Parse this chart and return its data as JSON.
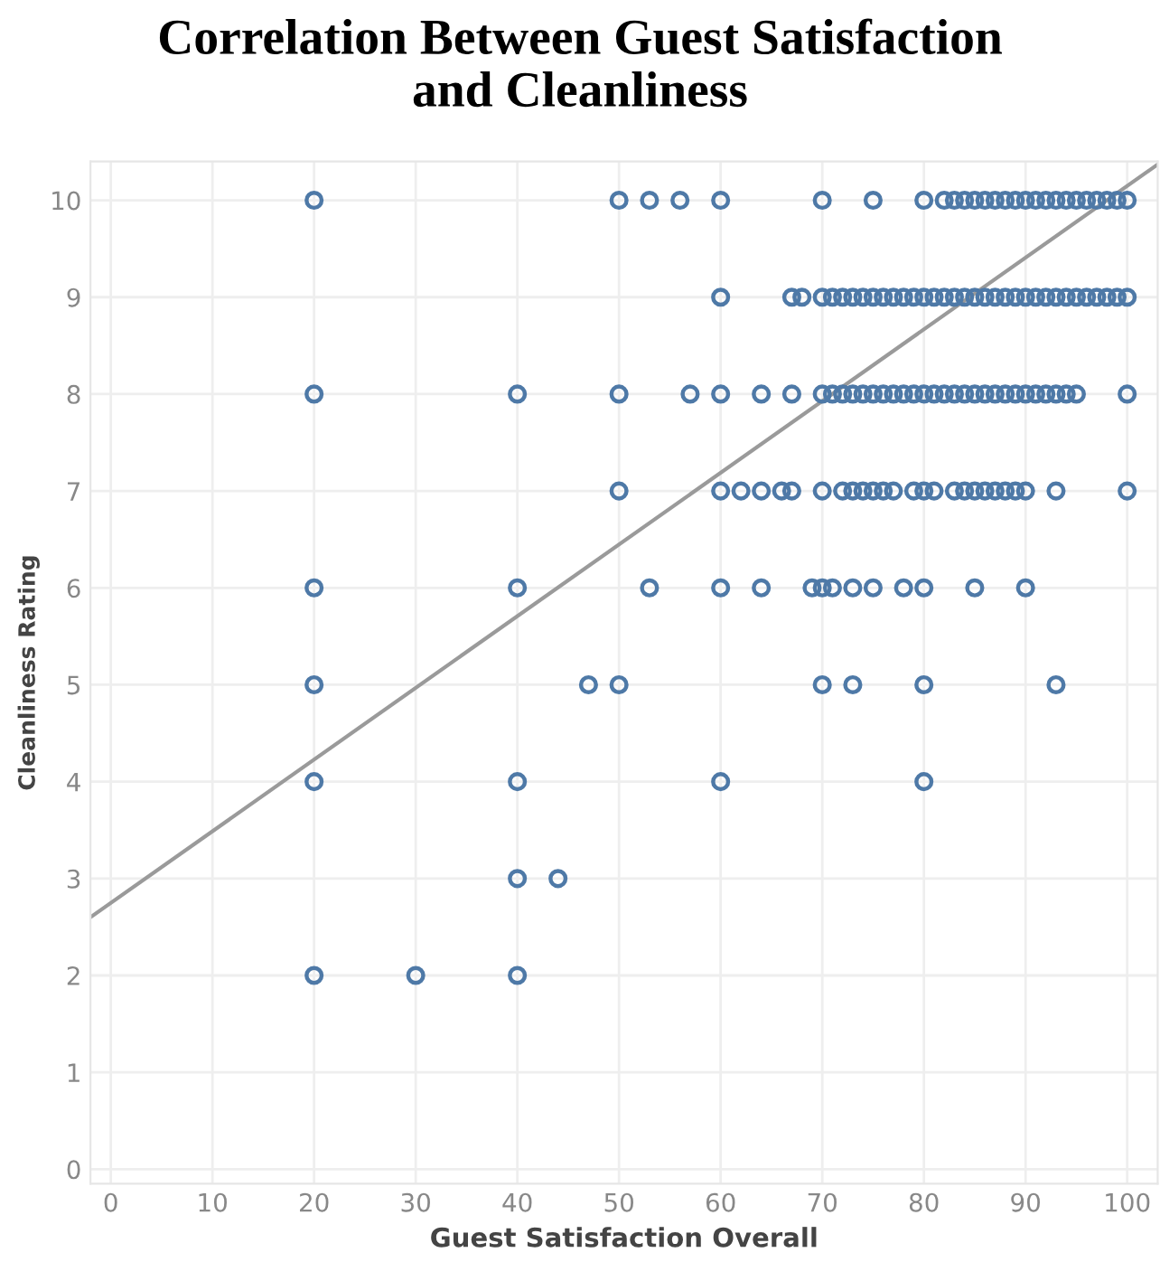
{
  "chart_data": {
    "type": "scatter",
    "title": "Correlation Between Guest Satisfaction\nand Cleanliness",
    "xlabel": "Guest Satisfaction Overall",
    "ylabel": "Cleanliness Rating",
    "xlim": [
      -2,
      103
    ],
    "ylim": [
      -0.15,
      10.4
    ],
    "xticks": [
      0,
      10,
      20,
      30,
      40,
      50,
      60,
      70,
      80,
      90,
      100
    ],
    "yticks": [
      0,
      1,
      2,
      3,
      4,
      5,
      6,
      7,
      8,
      9,
      10
    ],
    "grid": true,
    "marker": "circle",
    "series": [
      {
        "color": "#4e79a7",
        "x": [
          20,
          50,
          53,
          56,
          60,
          70,
          75,
          80,
          82,
          83,
          84,
          85,
          86,
          87,
          88,
          89,
          90,
          91,
          92,
          93,
          94,
          95,
          96,
          97,
          98,
          99,
          100,
          60,
          67,
          68,
          70,
          71,
          72,
          73,
          74,
          75,
          76,
          77,
          78,
          79,
          80,
          81,
          82,
          83,
          84,
          85,
          86,
          87,
          88,
          89,
          90,
          91,
          92,
          93,
          94,
          95,
          96,
          97,
          98,
          99,
          100,
          20,
          40,
          50,
          57,
          60,
          64,
          67,
          70,
          71,
          72,
          73,
          74,
          75,
          76,
          77,
          78,
          79,
          80,
          81,
          82,
          83,
          84,
          85,
          86,
          87,
          88,
          89,
          90,
          91,
          92,
          93,
          94,
          95,
          100,
          50,
          60,
          62,
          64,
          66,
          67,
          70,
          72,
          73,
          74,
          75,
          76,
          77,
          79,
          80,
          81,
          83,
          84,
          85,
          86,
          87,
          88,
          89,
          90,
          93,
          100,
          20,
          40,
          53,
          60,
          64,
          69,
          70,
          71,
          73,
          75,
          78,
          80,
          85,
          90,
          20,
          47,
          50,
          70,
          73,
          80,
          93,
          20,
          40,
          60,
          80,
          40,
          44,
          20,
          30,
          40
        ],
        "values": [
          10,
          10,
          10,
          10,
          10,
          10,
          10,
          10,
          10,
          10,
          10,
          10,
          10,
          10,
          10,
          10,
          10,
          10,
          10,
          10,
          10,
          10,
          10,
          10,
          10,
          10,
          10,
          9,
          9,
          9,
          9,
          9,
          9,
          9,
          9,
          9,
          9,
          9,
          9,
          9,
          9,
          9,
          9,
          9,
          9,
          9,
          9,
          9,
          9,
          9,
          9,
          9,
          9,
          9,
          9,
          9,
          9,
          9,
          9,
          9,
          9,
          8,
          8,
          8,
          8,
          8,
          8,
          8,
          8,
          8,
          8,
          8,
          8,
          8,
          8,
          8,
          8,
          8,
          8,
          8,
          8,
          8,
          8,
          8,
          8,
          8,
          8,
          8,
          8,
          8,
          8,
          8,
          8,
          8,
          8,
          7,
          7,
          7,
          7,
          7,
          7,
          7,
          7,
          7,
          7,
          7,
          7,
          7,
          7,
          7,
          7,
          7,
          7,
          7,
          7,
          7,
          7,
          7,
          7,
          7,
          7,
          6,
          6,
          6,
          6,
          6,
          6,
          6,
          6,
          6,
          6,
          6,
          6,
          6,
          6,
          5,
          5,
          5,
          5,
          5,
          5,
          5,
          4,
          4,
          4,
          4,
          3,
          3,
          2,
          2,
          2
        ]
      },
      {
        "type": "line",
        "color": "#9a9a9a",
        "marker": "none",
        "x": [
          -2,
          103
        ],
        "values": [
          2.6,
          10.37
        ]
      }
    ]
  }
}
